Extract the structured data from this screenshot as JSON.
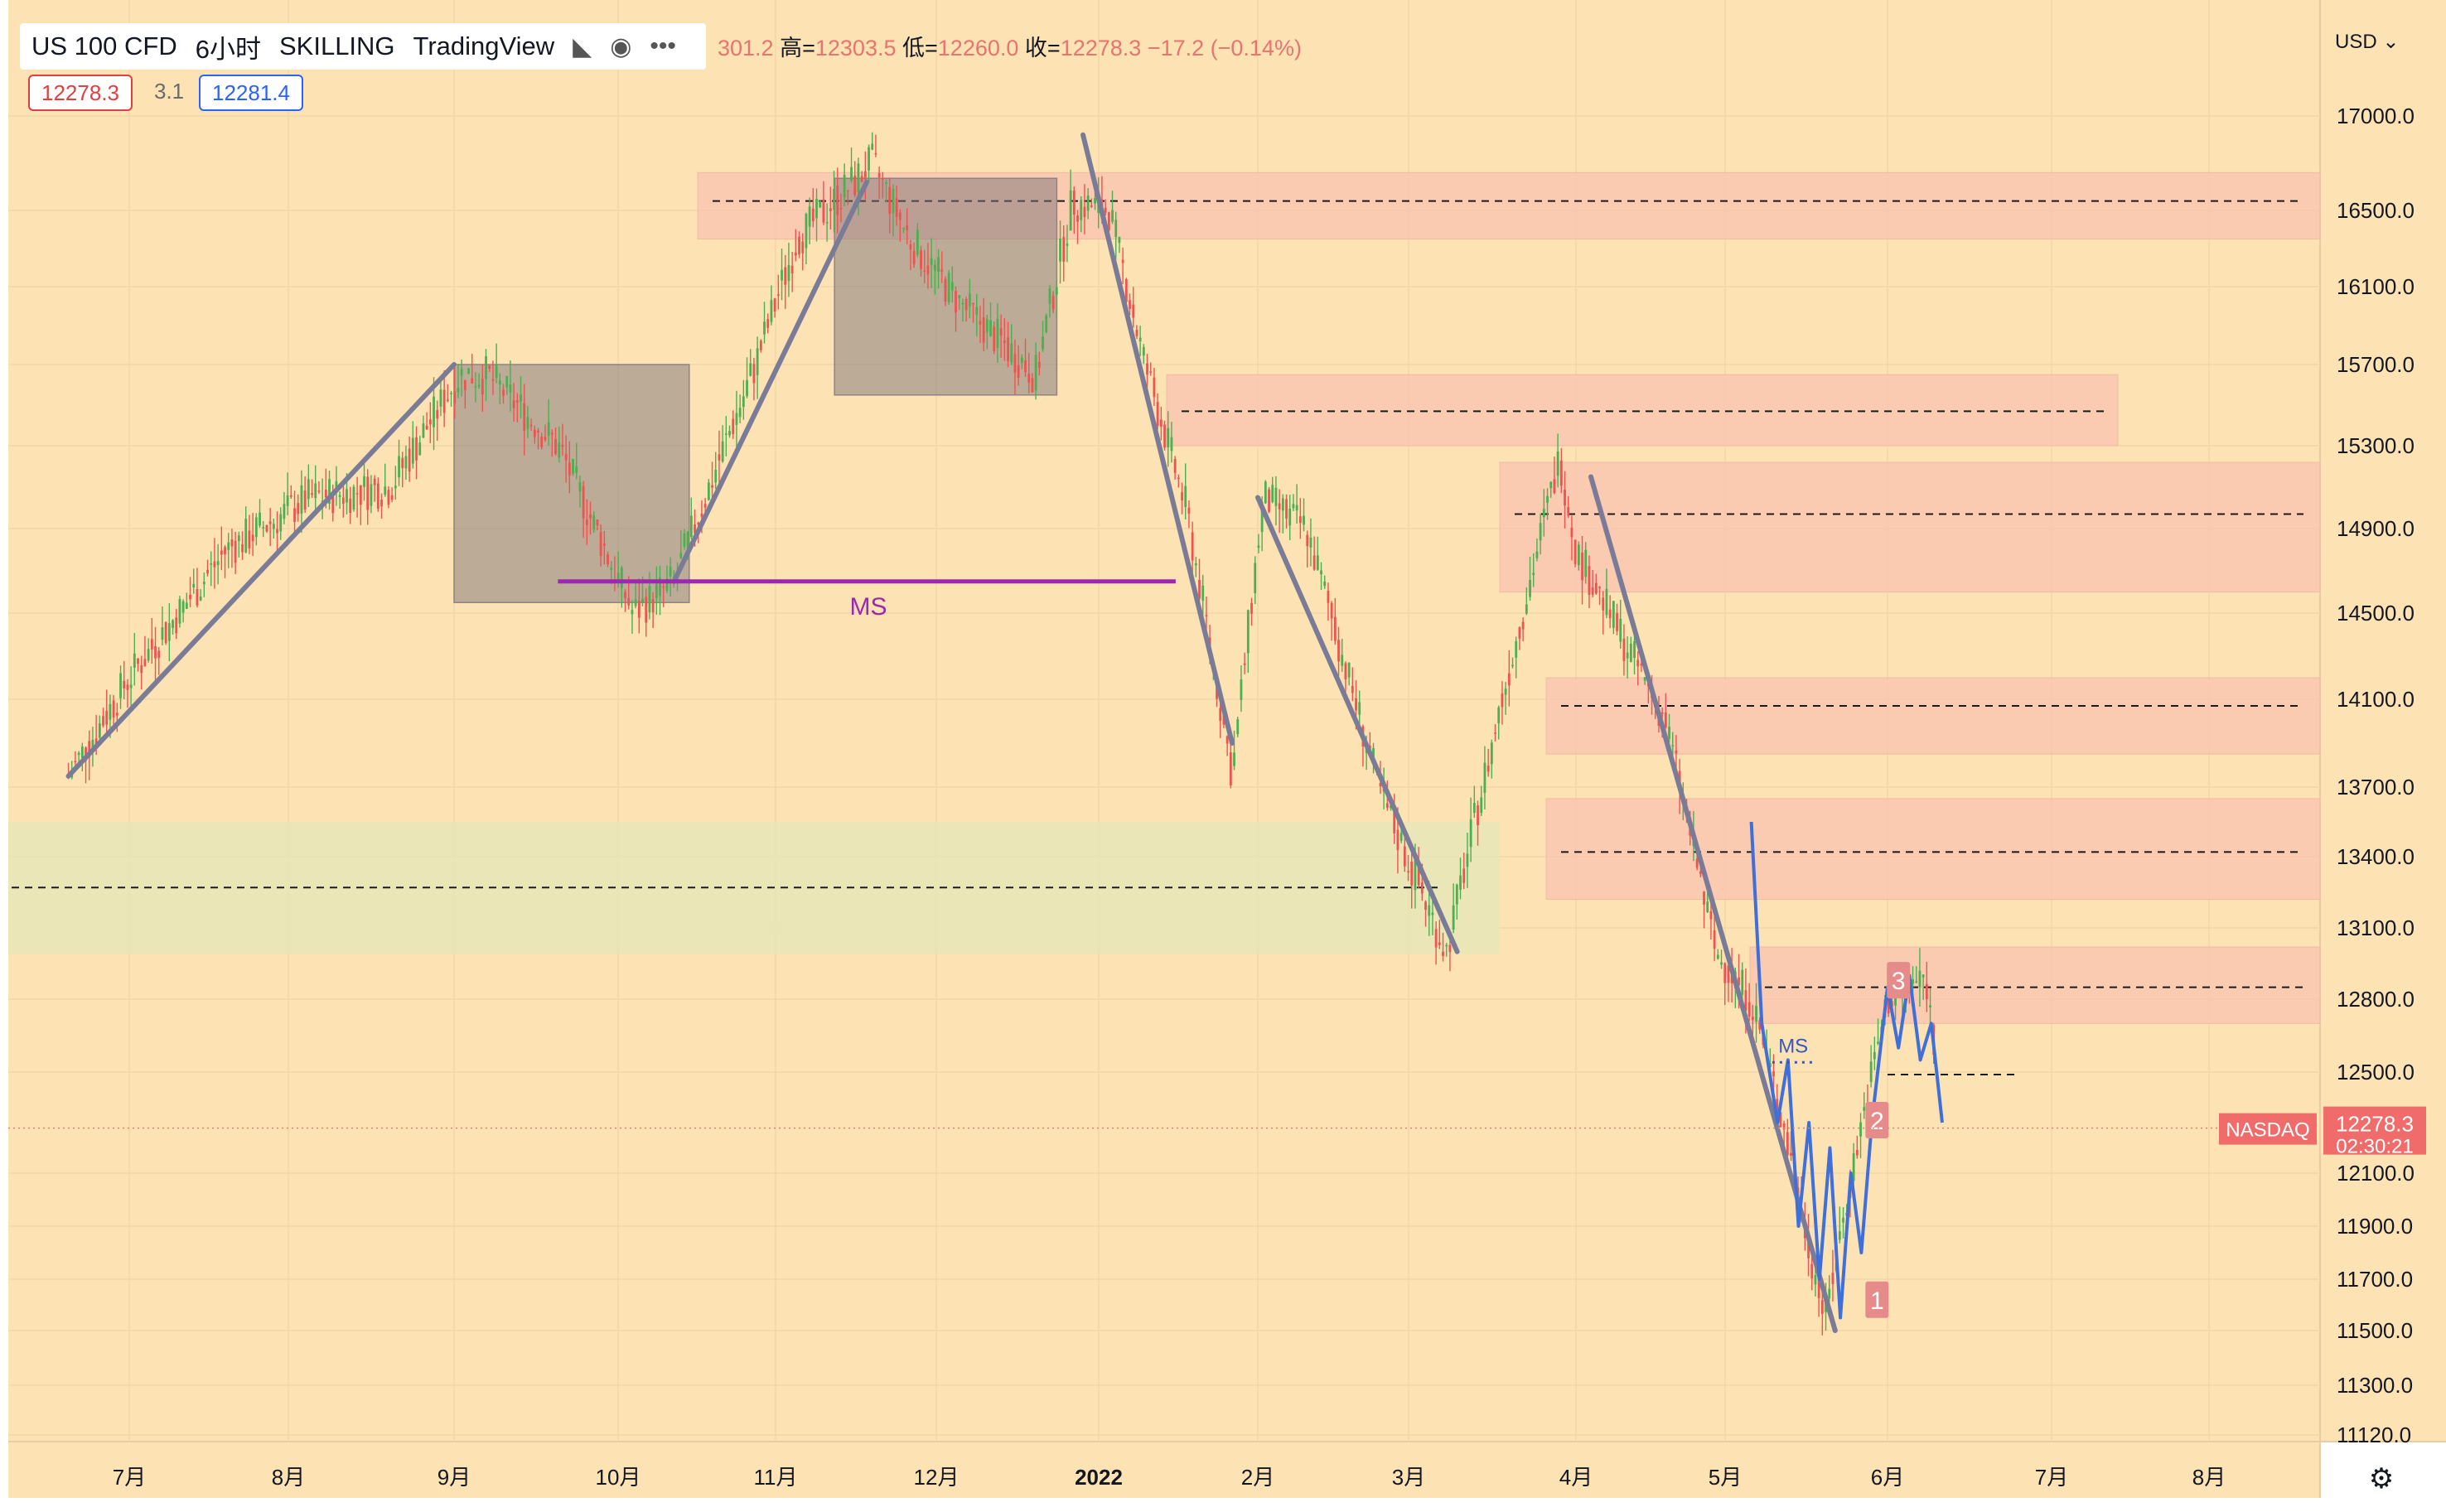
{
  "header": {
    "symbol": "US 100 CFD",
    "interval": "6小时",
    "broker": "SKILLING",
    "platform": "TradingView",
    "ohlc_prefix": "301.2",
    "high_label": "高=",
    "high_value": "12303.5",
    "low_label": "低=",
    "low_value": "12260.0",
    "close_label": "收=",
    "close_value": "12278.3",
    "change": "−17.2 (−0.14%)",
    "bid": "12278.3",
    "spread": "3.1",
    "ask": "12281.4"
  },
  "axis": {
    "currency": "USD",
    "current_price_label": "12278.3",
    "countdown": "02:30:21",
    "symbol_tag": "NASDAQ"
  },
  "colors": {
    "background": "#fde2b4",
    "up": "#4caf50",
    "down": "#ef5350",
    "zone": "#f9c5b0",
    "green_zone": "#e6e6b8",
    "box": "#7b7477",
    "trendline": "#7a7c97",
    "ms_line": "#9c27b0",
    "wave": "#3f6fd8"
  },
  "annotations": {
    "ms_main": "MS",
    "ms_small": "MS",
    "wave_labels": [
      "1",
      "2",
      "3"
    ]
  },
  "chart_data": {
    "type": "line",
    "title": "",
    "price_ticks": [
      17000.0,
      16500.0,
      16100.0,
      15700.0,
      15300.0,
      14900.0,
      14500.0,
      14100.0,
      13700.0,
      13400.0,
      13100.0,
      12800.0,
      12500.0,
      12100.0,
      11900.0,
      11700.0,
      11500.0,
      11300.0,
      11120.0
    ],
    "time_ticks": [
      "7月",
      "8月",
      "9月",
      "10月",
      "11月",
      "12月",
      "2022",
      "2月",
      "3月",
      "4月",
      "5月",
      "6月",
      "7月",
      "8月"
    ],
    "price_path": [
      [
        "2021-06-12",
        13750
      ],
      [
        "2021-07-01",
        14200
      ],
      [
        "2021-07-20",
        14800
      ],
      [
        "2021-08-05",
        15050
      ],
      [
        "2021-08-20",
        15100
      ],
      [
        "2021-09-02",
        15650
      ],
      [
        "2021-09-07",
        15650
      ],
      [
        "2021-09-20",
        15300
      ],
      [
        "2021-10-04",
        14500
      ],
      [
        "2021-10-12",
        14650
      ],
      [
        "2021-10-28",
        15700
      ],
      [
        "2021-11-05",
        16350
      ],
      [
        "2021-11-19",
        16750
      ],
      [
        "2021-11-26",
        16350
      ],
      [
        "2021-12-06",
        16000
      ],
      [
        "2021-12-20",
        15650
      ],
      [
        "2021-12-27",
        16550
      ],
      [
        "2022-01-03",
        16500
      ],
      [
        "2022-01-10",
        15700
      ],
      [
        "2022-01-18",
        15000
      ],
      [
        "2022-01-27",
        13750
      ],
      [
        "2022-02-02",
        15050
      ],
      [
        "2022-02-10",
        14900
      ],
      [
        "2022-02-24",
        13650
      ],
      [
        "2022-03-08",
        13000
      ],
      [
        "2022-03-16",
        13850
      ],
      [
        "2022-03-29",
        15250
      ],
      [
        "2022-04-01",
        14800
      ],
      [
        "2022-04-19",
        14000
      ],
      [
        "2022-04-29",
        13000
      ],
      [
        "2022-05-06",
        12800
      ],
      [
        "2022-05-12",
        12300
      ],
      [
        "2022-05-20",
        11550
      ],
      [
        "2022-05-27",
        12300
      ],
      [
        "2022-06-01",
        12800
      ],
      [
        "2022-06-08",
        12900
      ],
      [
        "2022-06-10",
        12500
      ]
    ],
    "resistance_zones": [
      {
        "low": 16350,
        "high": 16700,
        "mid": 16550
      },
      {
        "low": 15300,
        "high": 15650,
        "mid": 15470
      },
      {
        "low": 14600,
        "high": 15220,
        "mid": 14970
      },
      {
        "low": 13850,
        "high": 14200,
        "mid": 14070
      },
      {
        "low": 13220,
        "high": 13650,
        "mid": 13420
      },
      {
        "low": 12700,
        "high": 13020,
        "mid": 12850
      }
    ],
    "support_zone": {
      "low": 12990,
      "high": 13550,
      "mid": 13270
    },
    "consolidation_boxes": [
      {
        "from": "2021-09-01",
        "to": "2021-10-15",
        "low": 14550,
        "high": 15700
      },
      {
        "from": "2021-11-12",
        "to": "2021-12-24",
        "low": 15550,
        "high": 16670
      }
    ],
    "ms_level": 14650,
    "current_price": 12278.3,
    "grid": true
  }
}
